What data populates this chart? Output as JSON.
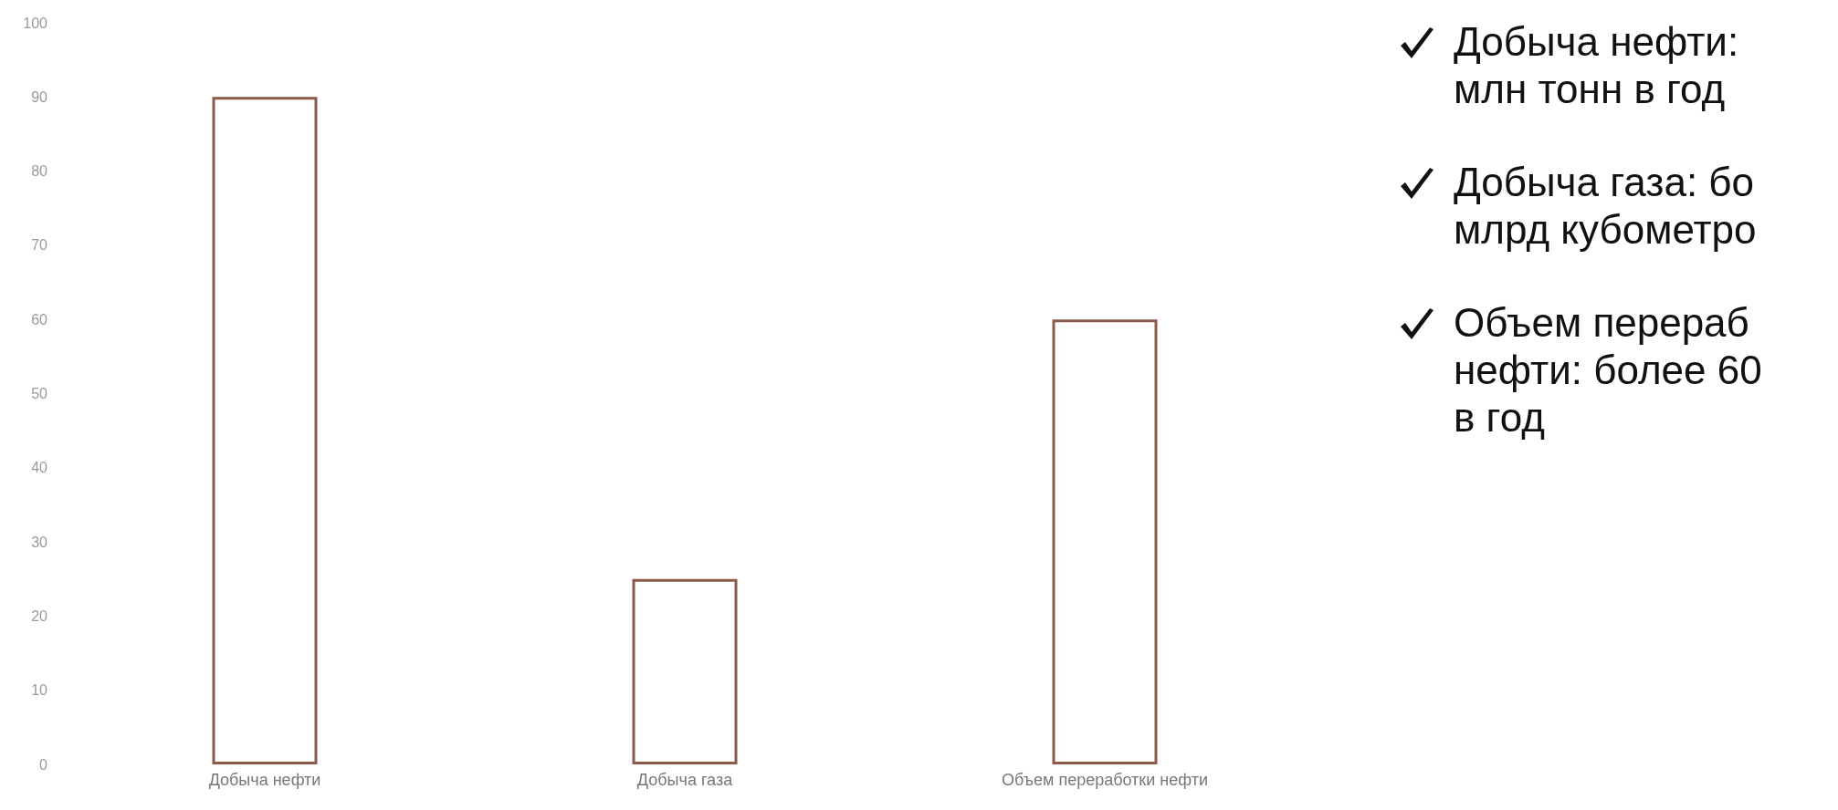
{
  "chart_data": {
    "type": "bar",
    "categories": [
      "Добыча нефти",
      "Добыча газа",
      "Объем переработки нефти"
    ],
    "values": [
      90,
      25,
      60
    ],
    "color": "#8b5a4a",
    "ylim": [
      0,
      100
    ],
    "yticks": [
      0,
      10,
      20,
      30,
      40,
      50,
      60,
      70,
      80,
      90,
      100
    ],
    "grid": false,
    "annotations": [
      "Добыча нефти:\nмлн тонн в год",
      "Добыча газа: бо\nмлрд кубометро",
      "Объем перераб\nнефти: более 60\nв год"
    ]
  }
}
